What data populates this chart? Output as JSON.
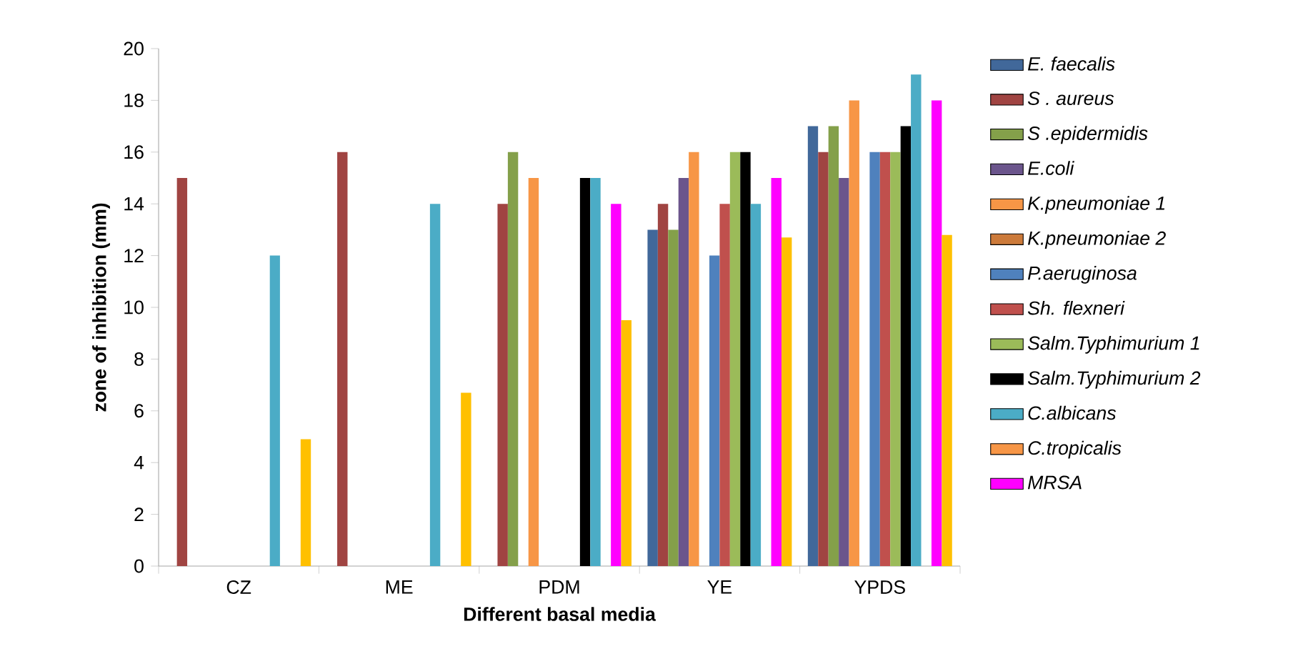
{
  "chart_data": {
    "type": "bar",
    "xlabel": "Different basal media",
    "ylabel": "zone of inhibition (mm)",
    "categories": [
      "CZ",
      "ME",
      "PDM",
      "YE",
      "YPDS"
    ],
    "ylim": [
      0,
      20
    ],
    "yticks": [
      0,
      2,
      4,
      6,
      8,
      10,
      12,
      14,
      16,
      18,
      20
    ],
    "legend": "right",
    "series": [
      {
        "name": "E. faecalis",
        "color": "#41689a",
        "values": [
          null,
          null,
          null,
          13,
          17
        ]
      },
      {
        "name": "S . aureus",
        "color": "#a04442",
        "values": [
          15,
          16,
          14,
          14,
          16
        ]
      },
      {
        "name": "S .epidermidis",
        "color": "#84a04a",
        "values": [
          null,
          null,
          16,
          13,
          17
        ]
      },
      {
        "name": "E.coli",
        "color": "#6b558c",
        "values": [
          null,
          null,
          null,
          15,
          15
        ]
      },
      {
        "name": "K.pneumoniae 1",
        "color": "#f79646",
        "values": [
          null,
          null,
          15,
          16,
          18
        ]
      },
      {
        "name": "K.pneumoniae 2",
        "color": "#cc7a3a",
        "values": [
          null,
          null,
          null,
          null,
          null
        ]
      },
      {
        "name": "P.aeruginosa",
        "color": "#4f81bd",
        "values": [
          null,
          null,
          null,
          12,
          16
        ]
      },
      {
        "name": "Sh. flexneri",
        "color": "#c0504d",
        "values": [
          null,
          null,
          null,
          14,
          16
        ]
      },
      {
        "name": "Salm.Typhimurium 1",
        "color": "#9bbb59",
        "values": [
          null,
          null,
          null,
          16,
          16
        ]
      },
      {
        "name": "Salm.Typhimurium 2",
        "color": "#000000",
        "values": [
          null,
          null,
          15,
          16,
          17
        ]
      },
      {
        "name": "C.albicans",
        "color": "#4bacc6",
        "values": [
          12,
          14,
          15,
          14,
          19
        ]
      },
      {
        "name": "C.tropicalis",
        "color": "#f79646",
        "values": [
          null,
          null,
          null,
          null,
          null
        ]
      },
      {
        "name": "MRSA",
        "color": "#ff00ff",
        "values": [
          null,
          null,
          14,
          15,
          18
        ]
      },
      {
        "color": "#ffc000",
        "values": [
          4.9,
          6.7,
          9.5,
          12.7,
          12.8
        ]
      }
    ]
  }
}
